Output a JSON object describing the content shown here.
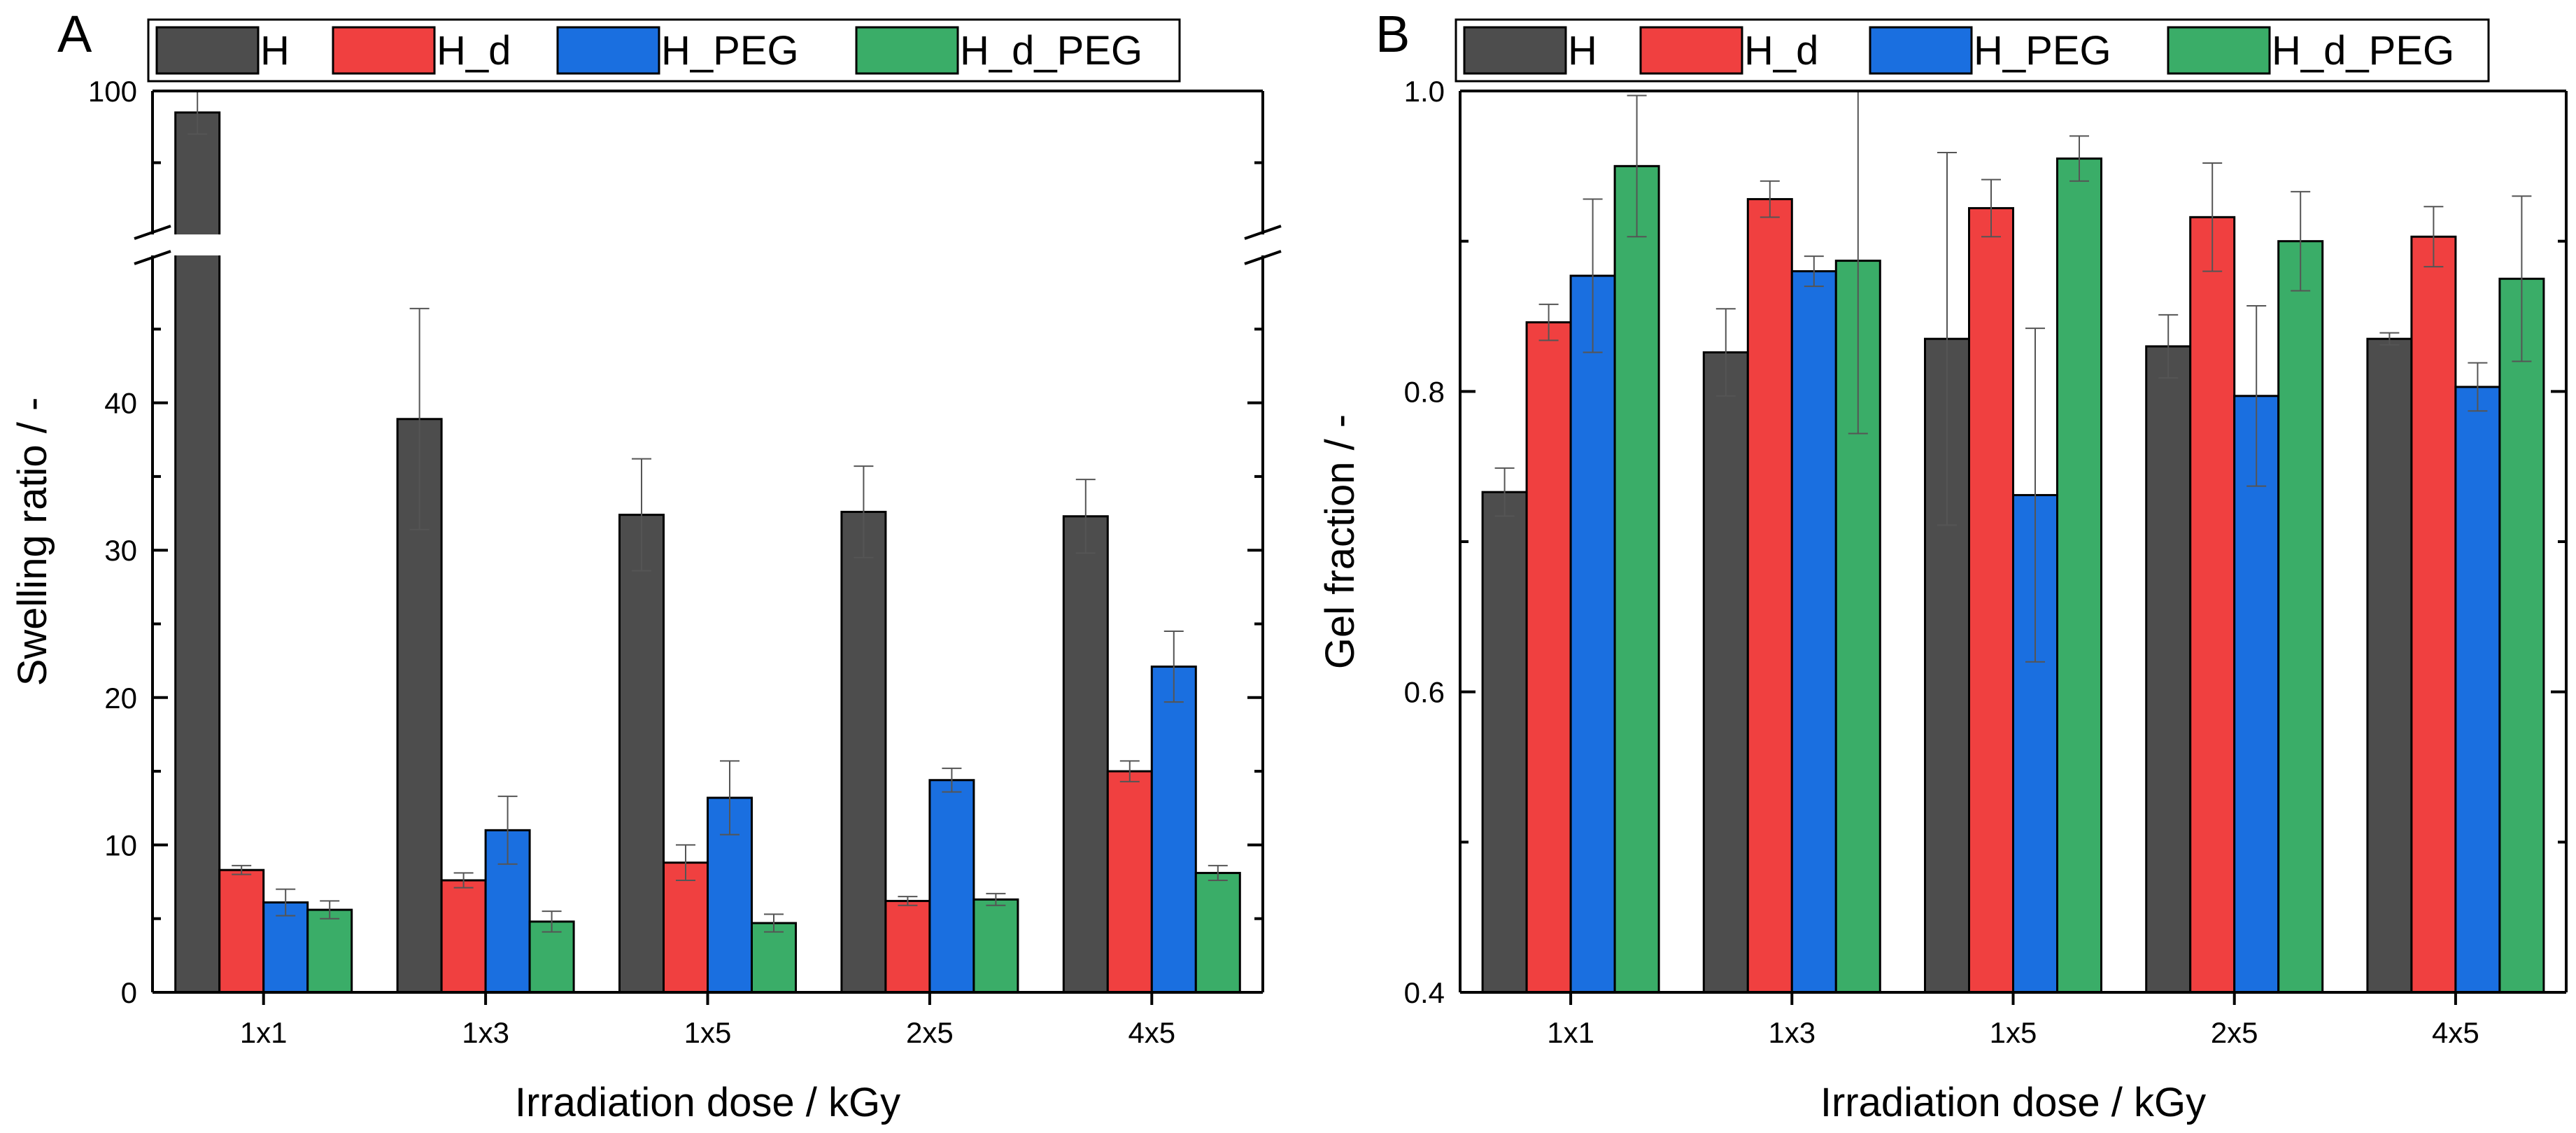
{
  "chart_data": [
    {
      "type": "bar",
      "panel_label": "A",
      "xlabel": "Irradiation dose / kGy",
      "ylabel": "Swelling ratio / -",
      "categories": [
        "1x1",
        "1x3",
        "1x5",
        "2x5",
        "4x5"
      ],
      "y_axis_break": {
        "lower_range": [
          0,
          50
        ],
        "upper_range": [
          80,
          100
        ]
      },
      "yticks_lower": [
        0,
        10,
        20,
        30,
        40
      ],
      "yticks_upper": [
        100
      ],
      "tick_labels": [
        "0",
        "10",
        "20",
        "30",
        "40",
        "100"
      ],
      "legend_position": "top",
      "series": [
        {
          "name": "H",
          "color": "#4d4d4d",
          "values": [
            97,
            38.9,
            32.4,
            32.6,
            32.3
          ],
          "errors": [
            3,
            7.5,
            3.8,
            3.1,
            2.5
          ]
        },
        {
          "name": "H_d",
          "color": "#f04040",
          "values": [
            8.3,
            7.6,
            8.8,
            6.2,
            15.0
          ],
          "errors": [
            0.3,
            0.5,
            1.2,
            0.3,
            0.7
          ]
        },
        {
          "name": "H_PEG",
          "color": "#1a6fe0",
          "values": [
            6.1,
            11.0,
            13.2,
            14.4,
            22.1
          ],
          "errors": [
            0.9,
            2.3,
            2.5,
            0.8,
            2.4
          ]
        },
        {
          "name": "H_d_PEG",
          "color": "#3aad68",
          "values": [
            5.6,
            4.8,
            4.7,
            6.3,
            8.1
          ],
          "errors": [
            0.6,
            0.7,
            0.6,
            0.4,
            0.5
          ]
        }
      ]
    },
    {
      "type": "bar",
      "panel_label": "B",
      "xlabel": "Irradiation dose / kGy",
      "ylabel": "Gel fraction / -",
      "categories": [
        "1x1",
        "1x3",
        "1x5",
        "2x5",
        "4x5"
      ],
      "ylim": [
        0.4,
        1.0
      ],
      "yticks": [
        0.4,
        0.6,
        0.8,
        1.0
      ],
      "tick_labels": [
        "0.4",
        "0.6",
        "0.8",
        "1.0"
      ],
      "legend_position": "top",
      "series": [
        {
          "name": "H",
          "color": "#4d4d4d",
          "values": [
            0.733,
            0.826,
            0.835,
            0.83,
            0.835
          ],
          "errors": [
            0.016,
            0.029,
            0.124,
            0.021,
            0.004
          ]
        },
        {
          "name": "H_d",
          "color": "#f04040",
          "values": [
            0.846,
            0.928,
            0.922,
            0.916,
            0.903
          ],
          "errors": [
            0.012,
            0.012,
            0.019,
            0.036,
            0.02
          ]
        },
        {
          "name": "H_PEG",
          "color": "#1a6fe0",
          "values": [
            0.877,
            0.88,
            0.731,
            0.797,
            0.803
          ],
          "errors": [
            0.051,
            0.01,
            0.111,
            0.06,
            0.016
          ]
        },
        {
          "name": "H_d_PEG",
          "color": "#3aad68",
          "values": [
            0.95,
            0.887,
            0.955,
            0.9,
            0.875
          ],
          "errors": [
            0.047,
            0.115,
            0.015,
            0.033,
            0.055
          ]
        }
      ]
    }
  ]
}
